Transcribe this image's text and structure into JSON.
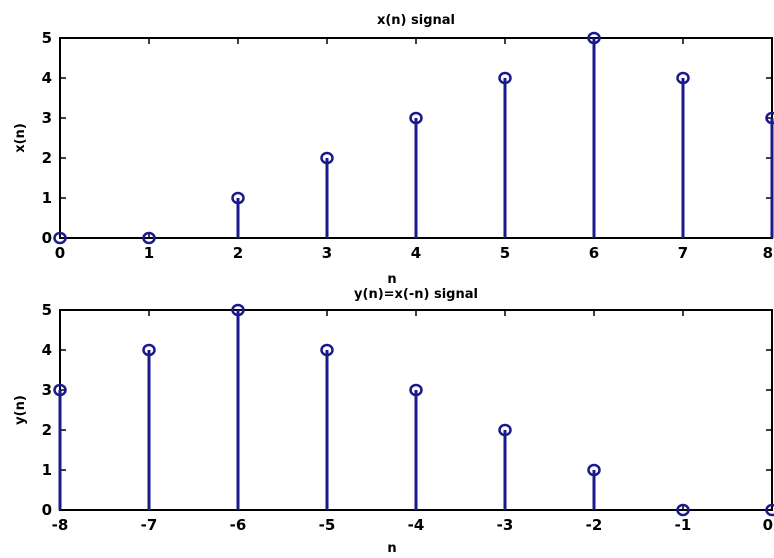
{
  "chart_data": [
    {
      "type": "stem",
      "title": "x(n) signal",
      "xlabel": "n",
      "ylabel": "x(n)",
      "xlim": [
        0,
        8
      ],
      "ylim": [
        0,
        5
      ],
      "x_ticks": [
        "0",
        "1",
        "2",
        "3",
        "4",
        "5",
        "6",
        "7",
        "8"
      ],
      "y_ticks": [
        "0",
        "1",
        "2",
        "3",
        "4",
        "5"
      ],
      "x": [
        0,
        1,
        2,
        3,
        4,
        5,
        6,
        7,
        8
      ],
      "values": [
        0,
        0,
        1,
        2,
        3,
        4,
        5,
        4,
        3
      ],
      "color": "#1a1a8c",
      "grid": false
    },
    {
      "type": "stem",
      "title": "y(n)=x(-n) signal",
      "xlabel": "n",
      "ylabel": "y(n)",
      "xlim": [
        -8,
        0
      ],
      "ylim": [
        0,
        5
      ],
      "x_ticks": [
        "-8",
        "-7",
        "-6",
        "-5",
        "-4",
        "-3",
        "-2",
        "-1",
        "0"
      ],
      "y_ticks": [
        "0",
        "1",
        "2",
        "3",
        "4",
        "5"
      ],
      "x": [
        -8,
        -7,
        -6,
        -5,
        -4,
        -3,
        -2,
        -1,
        0
      ],
      "values": [
        3,
        4,
        5,
        4,
        3,
        2,
        1,
        0,
        0
      ],
      "color": "#1a1a8c",
      "grid": false
    }
  ]
}
